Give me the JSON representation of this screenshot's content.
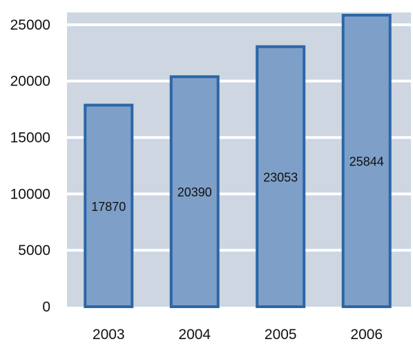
{
  "chart_data": {
    "type": "bar",
    "categories": [
      "2003",
      "2004",
      "2005",
      "2006"
    ],
    "values": [
      17870,
      20390,
      23053,
      25844
    ],
    "data_labels": [
      "17870",
      "20390",
      "23053",
      "25844"
    ],
    "yticks": [
      0,
      5000,
      10000,
      15000,
      20000,
      25000
    ],
    "ylim": [
      0,
      25844
    ],
    "grid": true,
    "legend": "none",
    "colors": {
      "plot_background": "#cdd6e1",
      "bar_fill": "#7e9fc8",
      "bar_stroke": "#2c66a6",
      "gridline": "#ffffff"
    }
  }
}
